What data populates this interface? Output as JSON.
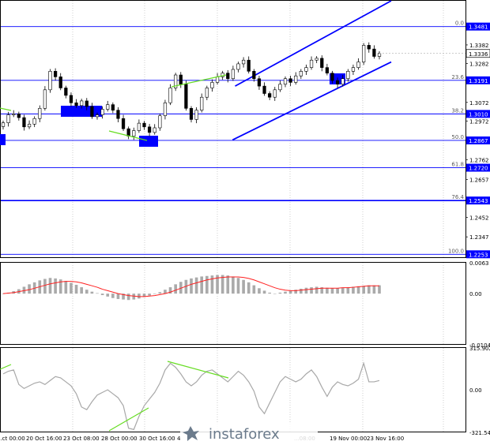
{
  "colors": {
    "candle": "#000000",
    "level_line": "#0000ff",
    "channel": "#0000ff",
    "divergence": "#66dd22",
    "signal": "#ff2020",
    "macd_bar": "#aaaaaa",
    "osc_line": "#a8a8a8",
    "current_price_bg": "#ffffff",
    "level_label_bg": "#0000ff"
  },
  "chart_data": [
    {
      "type": "candlestick",
      "panel": "price",
      "y_range": [
        1.2233,
        1.362
      ],
      "price_scale_labels": [
        "1.3382",
        "1.3282",
        "1.3072",
        "1.2972",
        "1.2762",
        "1.2657",
        "1.2452",
        "1.2347"
      ],
      "current_price": 1.3336,
      "current_price_label": "1.3336",
      "fibonacci_levels": [
        {
          "ratio": "0.0",
          "price": 1.3481,
          "price_label": "1.3481"
        },
        {
          "ratio": "23.6",
          "price": 1.3191,
          "price_label": "1.3191"
        },
        {
          "ratio": "38.2",
          "price": 1.301,
          "price_label": "1.3010"
        },
        {
          "ratio": "50.0",
          "price": 1.2867,
          "price_label": "1.2867"
        },
        {
          "ratio": "61.8",
          "price": 1.272,
          "price_label": "1.2720"
        },
        {
          "ratio": "76.4",
          "price": 1.2543,
          "price_label": "1.2543"
        },
        {
          "ratio": "100.0",
          "price": 1.2253,
          "price_label": "1.2253"
        }
      ],
      "close": [
        1.2962,
        1.3005,
        1.301,
        1.299,
        1.294,
        1.2955,
        1.2985,
        1.304,
        1.314,
        1.324,
        1.321,
        1.315,
        1.311,
        1.307,
        1.3055,
        1.308,
        1.305,
        1.2995,
        1.3005,
        1.3035,
        1.306,
        1.303,
        1.2985,
        1.293,
        1.289,
        1.292,
        1.296,
        1.294,
        1.291,
        1.2935,
        1.3,
        1.307,
        1.315,
        1.322,
        1.317,
        1.304,
        1.298,
        1.303,
        1.31,
        1.315,
        1.318,
        1.321,
        1.323,
        1.32,
        1.325,
        1.328,
        1.33,
        1.324,
        1.32,
        1.316,
        1.312,
        1.31,
        1.314,
        1.317,
        1.32,
        1.318,
        1.3215,
        1.324,
        1.326,
        1.33,
        1.331,
        1.326,
        1.323,
        1.319,
        1.317,
        1.32,
        1.324,
        1.326,
        1.329,
        1.338,
        1.336,
        1.332,
        1.3336
      ],
      "channel_lines": [
        {
          "from": [
            "28 Oct 16:00",
            1.287
          ],
          "to": [
            "23 Nov 16:00",
            1.329
          ]
        },
        {
          "from": [
            "29 Oct 08:00",
            1.316
          ],
          "to": [
            "23 Nov 16:00",
            1.362
          ]
        }
      ]
    },
    {
      "type": "histogram",
      "panel": "macd",
      "y_range": [
        -0.01044,
        0.0063
      ],
      "tick_labels": [
        "0.0063",
        "0.00",
        "-0.01044"
      ],
      "values": [
        0.0,
        0.0002,
        0.0005,
        0.0009,
        0.0014,
        0.0019,
        0.0023,
        0.0027,
        0.003,
        0.0032,
        0.0031,
        0.0029,
        0.0026,
        0.0022,
        0.0018,
        0.0013,
        0.0008,
        0.0004,
        0.0001,
        -0.0003,
        -0.0006,
        -0.0009,
        -0.0011,
        -0.0012,
        -0.0013,
        -0.0012,
        -0.001,
        -0.0007,
        -0.0004,
        -0.0001,
        0.0003,
        0.0008,
        0.0013,
        0.0019,
        0.0024,
        0.0028,
        0.0031,
        0.0033,
        0.0035,
        0.0036,
        0.0037,
        0.0038,
        0.0038,
        0.0037,
        0.0035,
        0.0032,
        0.0028,
        0.0023,
        0.0017,
        0.0011,
        0.0006,
        0.0002,
        0.0,
        0.0002,
        0.0004,
        0.0006,
        0.0008,
        0.001,
        0.0012,
        0.0013,
        0.0014,
        0.0013,
        0.0012,
        0.0011,
        0.0011,
        0.0012,
        0.0013,
        0.0014,
        0.0015,
        0.0016,
        0.0017,
        0.0017,
        0.0017
      ],
      "signal_values": [
        0.0,
        0.0001,
        0.0002,
        0.0004,
        0.0006,
        0.0008,
        0.0011,
        0.0014,
        0.0017,
        0.002,
        0.0022,
        0.0024,
        0.0025,
        0.0025,
        0.0024,
        0.0022,
        0.0019,
        0.0016,
        0.0013,
        0.0009,
        0.0006,
        0.0003,
        0.0,
        -0.0002,
        -0.0004,
        -0.0005,
        -0.0006,
        -0.0006,
        -0.0005,
        -0.0004,
        -0.0002,
        0.0,
        0.0003,
        0.0007,
        0.0011,
        0.0015,
        0.0019,
        0.0022,
        0.0025,
        0.0028,
        0.003,
        0.0032,
        0.0033,
        0.0034,
        0.0034,
        0.0034,
        0.0033,
        0.0031,
        0.0028,
        0.0024,
        0.002,
        0.0016,
        0.0012,
        0.0009,
        0.0007,
        0.0006,
        0.0006,
        0.0007,
        0.0008,
        0.0009,
        0.001,
        0.0011,
        0.0011,
        0.0011,
        0.0011,
        0.0012,
        0.0012,
        0.0013,
        0.0014,
        0.0015,
        0.0016,
        0.0016,
        0.0016
      ]
    },
    {
      "type": "line",
      "panel": "cci",
      "y_range": [
        -321.5476,
        315.9023
      ],
      "tick_labels": [
        "315.9023",
        "0.00",
        "-321.5476"
      ],
      "values": [
        120,
        140,
        150,
        40,
        10,
        30,
        50,
        60,
        40,
        70,
        100,
        90,
        60,
        30,
        -30,
        -130,
        -150,
        -90,
        -40,
        -20,
        0,
        -30,
        -60,
        -120,
        -290,
        -300,
        -200,
        -120,
        -70,
        -20,
        50,
        150,
        200,
        170,
        120,
        60,
        30,
        60,
        110,
        140,
        150,
        120,
        90,
        60,
        100,
        140,
        110,
        60,
        -10,
        -130,
        -180,
        -100,
        -20,
        60,
        100,
        80,
        60,
        80,
        120,
        150,
        100,
        20,
        -50,
        20,
        60,
        40,
        30,
        50,
        80,
        200,
        60,
        60,
        70
      ],
      "divergence_segments": [
        {
          "from": [
            "28 Oct 16:00",
            -321
          ],
          "to": [
            "30 Oct 16:00",
            -160
          ]
        },
        {
          "from": [
            "31 Oct 16:00",
            240
          ],
          "to": [
            "6 Nov 00:00",
            100
          ]
        }
      ]
    }
  ],
  "x_axis": {
    "tick_labels": [
      "...ct 00:00",
      "20 Oct 16:00",
      "23 Oct 08:00",
      "28 Oct 00:00",
      "30 Oct 16:00",
      "4",
      "...08:00",
      "19 Nov 00:00",
      "23 Nov 16:00"
    ]
  },
  "watermark": {
    "brand": "instaforex",
    "brand_icon": "instaforex-logo-icon"
  }
}
